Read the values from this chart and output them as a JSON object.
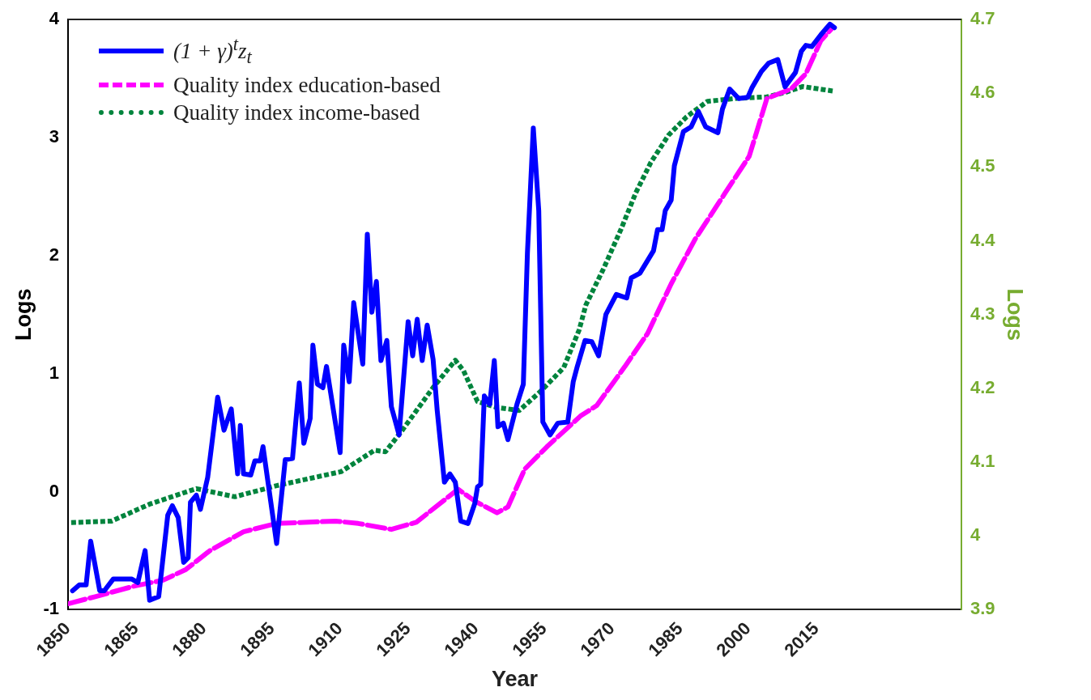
{
  "chart_data": {
    "type": "line",
    "xlabel": "Year",
    "ylabel": "Logs",
    "y2label": "Logs",
    "xlim": [
      1850,
      2047
    ],
    "xticks": [
      1850,
      1865,
      1880,
      1895,
      1910,
      1925,
      1940,
      1955,
      1970,
      1985,
      2000,
      2015
    ],
    "ylim": [
      -1,
      4
    ],
    "yticks": [
      -1,
      0,
      1,
      2,
      3,
      4
    ],
    "y2lim": [
      3.9,
      4.7
    ],
    "y2ticks": [
      3.9,
      4,
      4.1,
      4.2,
      4.3,
      4.4,
      4.5,
      4.6,
      4.7
    ],
    "grid": false,
    "legend": "top left",
    "marker": "none",
    "series": [
      {
        "name": "(1 + γ)$^{t}$z$_{t}$",
        "color": "#0000ff",
        "line_style": "solid",
        "x": [
          1851,
          1852.5,
          1854,
          1855,
          1857,
          1858,
          1860,
          1864,
          1865.4,
          1867,
          1868,
          1870,
          1872,
          1873,
          1874.3,
          1875.5,
          1876.5,
          1877,
          1878.3,
          1879.2,
          1880.8,
          1883,
          1884.4,
          1886,
          1887.4,
          1888,
          1888.7,
          1890.3,
          1891.2,
          1892.4,
          1893,
          1896,
          1897.9,
          1899.5,
          1901,
          1902,
          1903.4,
          1904,
          1905,
          1906.2,
          1907,
          1910,
          1910.8,
          1912,
          1913,
          1915,
          1916,
          1917,
          1918,
          1919,
          1920.3,
          1921.3,
          1923,
          1925,
          1926,
          1927,
          1928.1,
          1929.2,
          1930.5,
          1931.4,
          1933,
          1934.2,
          1935.4,
          1936.6,
          1938.2,
          1939.7,
          1940.3,
          1941,
          1941.8,
          1943,
          1944,
          1944.8,
          1946,
          1947,
          1949,
          1950.4,
          1951.3,
          1952.6,
          1953.8,
          1954.7,
          1956.3,
          1958,
          1960.2,
          1961.4,
          1962.3,
          1964,
          1965.5,
          1967,
          1968.6,
          1970.9,
          1973.2,
          1974.2,
          1976.1,
          1979.1,
          1980,
          1981,
          1981.7,
          1983,
          1983.7,
          1985.7,
          1987.4,
          1989,
          1990.6,
          1993.3,
          1994.3,
          1995.9,
          1997.9,
          1999.9,
          2000.8,
          2002.9,
          2004.5,
          2006.5,
          2008.1,
          2010.4,
          2011.7,
          2012.7,
          2014,
          2016,
          2018,
          2019
        ],
        "values": [
          -0.84,
          -0.79,
          -0.79,
          -0.42,
          -0.84,
          -0.84,
          -0.74,
          -0.74,
          -0.77,
          -0.5,
          -0.92,
          -0.89,
          -0.2,
          -0.12,
          -0.22,
          -0.6,
          -0.56,
          -0.09,
          -0.03,
          -0.15,
          0.12,
          0.8,
          0.52,
          0.7,
          0.15,
          0.56,
          0.15,
          0.14,
          0.26,
          0.26,
          0.38,
          -0.44,
          0.27,
          0.28,
          0.92,
          0.41,
          0.62,
          1.24,
          0.91,
          0.88,
          1.06,
          0.33,
          1.24,
          0.93,
          1.6,
          1.08,
          2.18,
          1.52,
          1.78,
          1.11,
          1.28,
          0.72,
          0.48,
          1.44,
          1.15,
          1.46,
          1.11,
          1.41,
          1.12,
          0.69,
          0.08,
          0.15,
          0.08,
          -0.25,
          -0.27,
          -0.1,
          0.04,
          0.06,
          0.81,
          0.74,
          1.11,
          0.55,
          0.58,
          0.44,
          0.74,
          0.91,
          2.02,
          3.08,
          2.38,
          0.59,
          0.48,
          0.58,
          0.59,
          0.93,
          1.06,
          1.28,
          1.27,
          1.15,
          1.5,
          1.67,
          1.64,
          1.81,
          1.85,
          2.04,
          2.22,
          2.22,
          2.38,
          2.47,
          2.76,
          3.05,
          3.09,
          3.22,
          3.09,
          3.04,
          3.24,
          3.41,
          3.33,
          3.34,
          3.42,
          3.56,
          3.63,
          3.66,
          3.43,
          3.55,
          3.73,
          3.78,
          3.77,
          3.87,
          3.96,
          3.93
        ]
      },
      {
        "name": "Quality index education-based",
        "color": "#ff00ff",
        "line_style": "dashed",
        "x": [
          1850,
          1856,
          1864.7,
          1871,
          1876,
          1881.3,
          1888.7,
          1896,
          1909,
          1914,
          1921.3,
          1926.8,
          1936,
          1939.7,
          1944.6,
          1947,
          1950.7,
          1955.6,
          1963,
          1966.6,
          1972.8,
          1977.8,
          1983,
          1988.3,
          1994.9,
          2000.2,
          2004.1,
          2009.4,
          2012.7,
          2016,
          2018.6
        ],
        "values": [
          -0.95,
          -0.89,
          -0.8,
          -0.75,
          -0.66,
          -0.5,
          -0.34,
          -0.27,
          -0.25,
          -0.27,
          -0.32,
          -0.26,
          0.02,
          -0.08,
          -0.18,
          -0.13,
          0.19,
          0.38,
          0.64,
          0.73,
          1.06,
          1.34,
          1.76,
          2.14,
          2.53,
          2.84,
          3.33,
          3.41,
          3.54,
          3.82,
          3.93
        ]
      },
      {
        "name": "Quality index income-based",
        "color": "#00843d",
        "line_style": "dotted",
        "axis": "y2",
        "x": [
          1850.7,
          1859.6,
          1868,
          1878.3,
          1886.8,
          1896,
          1910.2,
          1917.6,
          1920,
          1923.7,
          1930.5,
          1935.4,
          1937.2,
          1940.3,
          1944.6,
          1949.5,
          1954.4,
          1959.3,
          1962.7,
          1964.2,
          1968,
          1971.9,
          1975.2,
          1978.5,
          1982.4,
          1986.4,
          1991,
          1997.5,
          2004.1,
          2008.1,
          2012,
          2018.6
        ],
        "values": [
          4.018,
          4.02,
          4.043,
          4.064,
          4.053,
          4.068,
          4.087,
          4.116,
          4.114,
          4.143,
          4.201,
          4.238,
          4.224,
          4.182,
          4.174,
          4.17,
          4.197,
          4.228,
          4.279,
          4.313,
          4.361,
          4.415,
          4.465,
          4.506,
          4.543,
          4.568,
          4.589,
          4.593,
          4.595,
          4.601,
          4.609,
          4.603
        ]
      }
    ]
  }
}
